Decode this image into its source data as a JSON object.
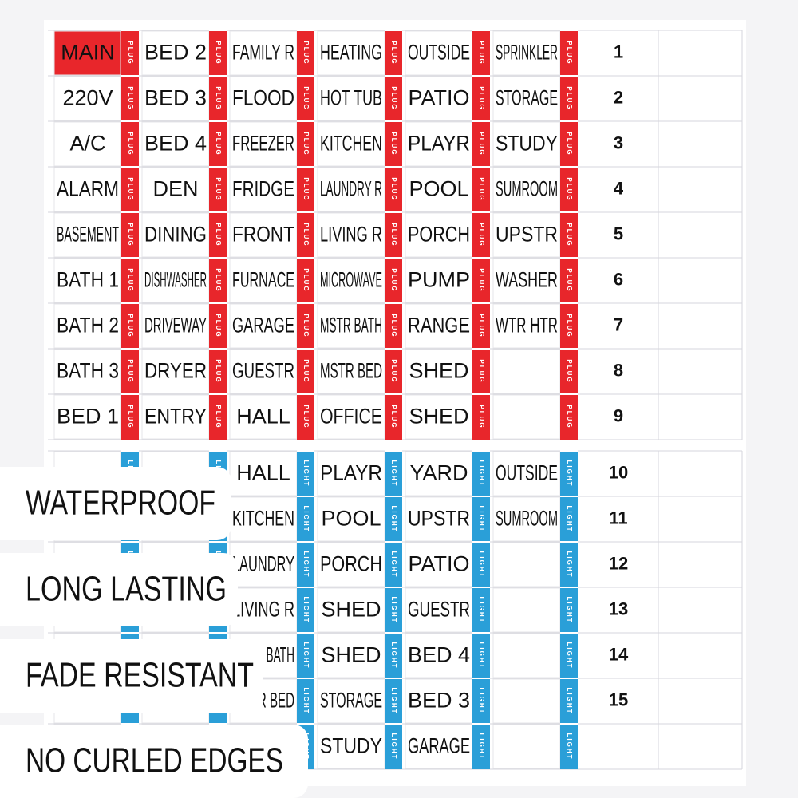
{
  "plug_section": {
    "tag": "PLUG",
    "columns": [
      [
        "MAIN",
        "220V",
        "A/C",
        "ALARM",
        "BASEMENT",
        "BATH 1",
        "BATH 2",
        "BATH 3",
        "BED 1"
      ],
      [
        "BED 2",
        "BED 3",
        "BED 4",
        "DEN",
        "DINING",
        "DISHWASHER",
        "DRIVEWAY",
        "DRYER",
        "ENTRY"
      ],
      [
        "FAMILY R",
        "FLOOD",
        "FREEZER",
        "FRIDGE",
        "FRONT",
        "FURNACE",
        "GARAGE",
        "GUESTR",
        "HALL"
      ],
      [
        "HEATING",
        "HOT TUB",
        "KITCHEN",
        "LAUNDRY R",
        "LIVING R",
        "MICROWAVE",
        "MSTR BATH",
        "MSTR BED",
        "OFFICE"
      ],
      [
        "OUTSIDE",
        "PATIO",
        "PLAYR",
        "POOL",
        "PORCH",
        "PUMP",
        "RANGE",
        "SHED",
        "SHED"
      ],
      [
        "SPRINKLER",
        "STORAGE",
        "STUDY",
        "SUMROOM",
        "UPSTR",
        "WASHER",
        "WTR HTR"
      ]
    ],
    "numbers": [
      1,
      2,
      3,
      4,
      5,
      6,
      7,
      8,
      9
    ]
  },
  "light_section": {
    "tag": "LIGHT",
    "columns": [
      [],
      [],
      [
        "HALL",
        "KITCHEN",
        "LAUNDRY",
        "LIVING R",
        "MSTR BATH",
        "MSTR BED"
      ],
      [
        "PLAYR",
        "POOL",
        "PORCH",
        "SHED",
        "SHED",
        "STORAGE",
        "STUDY"
      ],
      [
        "YARD",
        "UPSTR",
        "PATIO",
        "GUESTR",
        "BED 4",
        "BED 3",
        "GARAGE"
      ],
      [
        "OUTSIDE",
        "SUMROOM"
      ]
    ],
    "numbers": [
      10,
      11,
      12,
      13,
      14,
      15
    ]
  },
  "badges": [
    "WATERPROOF",
    "LONG LASTING",
    "FADE RESISTANT",
    "NO CURLED EDGES"
  ]
}
